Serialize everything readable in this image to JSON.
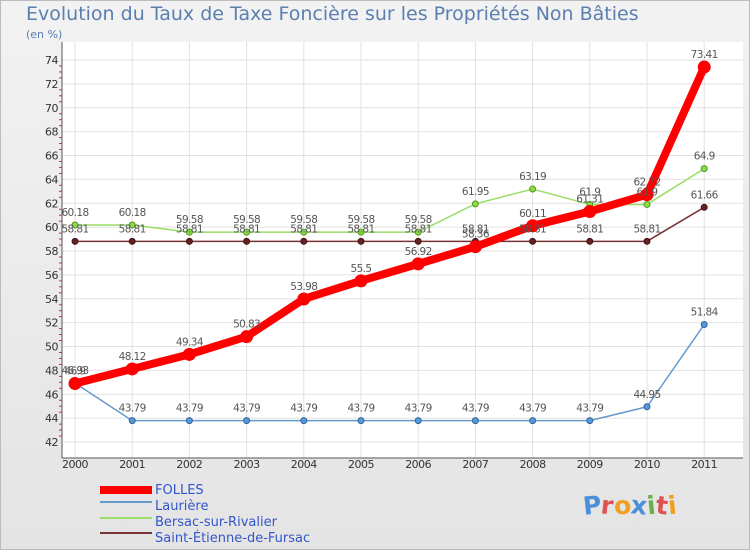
{
  "header": {
    "title": "Evolution du Taux de Taxe Foncière sur les Propriétés Non Bâties",
    "unit": "(en %)"
  },
  "brand": {
    "letters": [
      "P",
      "r",
      "o",
      "x",
      "i",
      "t",
      "i"
    ],
    "colors": [
      "#4a90d9",
      "#e05050",
      "#f0a020",
      "#4a90d9",
      "#6ab04c",
      "#e05050",
      "#f0a020"
    ]
  },
  "chart_data": {
    "type": "line",
    "title": "Evolution du Taux de Taxe Foncière sur les Propriétés Non Bâties",
    "ylabel": "(en %)",
    "xlabel": "",
    "categories": [
      "2000",
      "2001",
      "2002",
      "2003",
      "2004",
      "2005",
      "2006",
      "2007",
      "2008",
      "2009",
      "2010",
      "2011"
    ],
    "ylim": [
      42,
      74
    ],
    "yticks": [
      42,
      44,
      46,
      48,
      50,
      52,
      54,
      56,
      58,
      60,
      62,
      64,
      66,
      68,
      70,
      72,
      74
    ],
    "grid": true,
    "legend": "bottom-left",
    "series": [
      {
        "name": "FOLLES",
        "color": "#ff0000",
        "values": [
          46.9,
          48.12,
          49.34,
          50.83,
          53.98,
          55.5,
          56.92,
          58.36,
          60.11,
          61.31,
          62.72,
          73.41
        ],
        "labels": [
          "46.9",
          "48.12",
          "49.34",
          "50.83",
          "53.98",
          "55.5",
          "56.92",
          "58.36",
          "60.11",
          "61.31",
          "62.72",
          "73.41"
        ]
      },
      {
        "name": "Laurière",
        "color": "#6699cc",
        "values": [
          46.93,
          43.79,
          43.79,
          43.79,
          43.79,
          43.79,
          43.79,
          43.79,
          43.79,
          43.79,
          44.95,
          51.84
        ],
        "labels": [
          "46.93",
          "43.79",
          "43.79",
          "43.79",
          "43.79",
          "43.79",
          "43.79",
          "43.79",
          "43.79",
          "43.79",
          "44.95",
          "51.84"
        ]
      },
      {
        "name": "Bersac-sur-Rivalier",
        "color": "#99dd66",
        "values": [
          60.18,
          60.18,
          59.58,
          59.58,
          59.58,
          59.58,
          59.58,
          61.95,
          63.19,
          61.9,
          61.9,
          64.9
        ],
        "labels": [
          "60.18",
          "60.18",
          "59.58",
          "59.58",
          "59.58",
          "59.58",
          "59.58",
          "61.95",
          "63.19",
          "61.9",
          "61.9",
          "64.9"
        ]
      },
      {
        "name": "Saint-Étienne-de-Fursac",
        "color": "#773333",
        "values": [
          58.81,
          58.81,
          58.81,
          58.81,
          58.81,
          58.81,
          58.81,
          58.81,
          58.81,
          58.81,
          58.81,
          61.66
        ],
        "labels": [
          "58.81",
          "58.81",
          "58.81",
          "58.81",
          "58.81",
          "58.81",
          "58.81",
          "58.81",
          "58.81",
          "58.81",
          "58.81",
          "61.66"
        ]
      }
    ]
  }
}
